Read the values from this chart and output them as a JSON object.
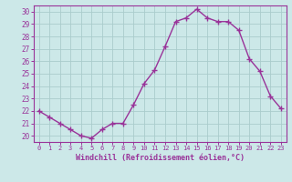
{
  "x": [
    0,
    1,
    2,
    3,
    4,
    5,
    6,
    7,
    8,
    9,
    10,
    11,
    12,
    13,
    14,
    15,
    16,
    17,
    18,
    19,
    20,
    21,
    22,
    23
  ],
  "y": [
    22.0,
    21.5,
    21.0,
    20.5,
    20.0,
    19.8,
    20.5,
    21.0,
    21.0,
    22.5,
    24.2,
    25.3,
    27.2,
    29.2,
    29.5,
    30.2,
    29.5,
    29.2,
    29.2,
    28.5,
    26.2,
    25.2,
    23.2,
    22.2
  ],
  "line_color": "#993399",
  "marker": "+",
  "bg_color": "#cce8e8",
  "grid_color": "#aacccc",
  "ylabel_ticks": [
    20,
    21,
    22,
    23,
    24,
    25,
    26,
    27,
    28,
    29,
    30
  ],
  "xlabel": "Windchill (Refroidissement éolien,°C)",
  "ylim": [
    19.5,
    30.5
  ],
  "xlim": [
    -0.5,
    23.5
  ],
  "tick_color": "#993399",
  "label_color": "#993399",
  "spine_color": "#993399"
}
